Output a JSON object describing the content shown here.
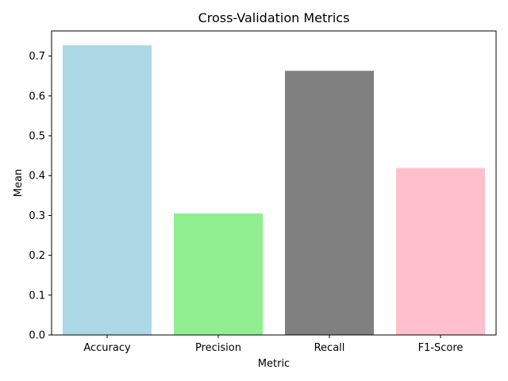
{
  "chart_data": {
    "type": "bar",
    "title": "Cross-Validation Metrics",
    "xlabel": "Metric",
    "ylabel": "Mean",
    "categories": [
      "Accuracy",
      "Precision",
      "Recall",
      "F1-Score"
    ],
    "values": [
      0.727,
      0.305,
      0.663,
      0.419
    ],
    "colors": [
      "#add8e6",
      "#90ee90",
      "#808080",
      "#ffc0cb"
    ],
    "ylim": [
      0,
      0.763
    ],
    "yticks": [
      0.0,
      0.1,
      0.2,
      0.3,
      0.4,
      0.5,
      0.6,
      0.7
    ],
    "ytick_labels": [
      "0.0",
      "0.1",
      "0.2",
      "0.3",
      "0.4",
      "0.5",
      "0.6",
      "0.7"
    ],
    "grid": false,
    "legend": "none"
  }
}
